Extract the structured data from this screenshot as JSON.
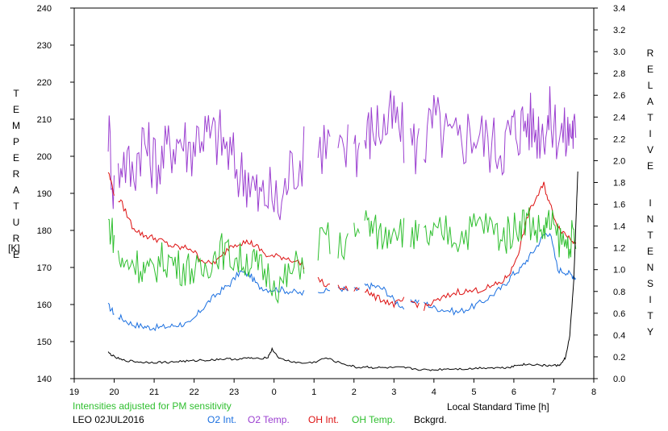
{
  "chart_data": {
    "type": "line",
    "title": "",
    "y_left": {
      "label": "TEMPERATURE",
      "unit": "[K]",
      "range": [
        140,
        240
      ],
      "ticks": [
        "140",
        "150",
        "160",
        "170",
        "180",
        "190",
        "200",
        "210",
        "220",
        "230",
        "240"
      ]
    },
    "y_right": {
      "label": "RELATIVE INTENSITY",
      "range": [
        0.0,
        3.4
      ],
      "ticks": [
        "0.0",
        "0.2",
        "0.4",
        "0.6",
        "0.8",
        "1.0",
        "1.2",
        "1.4",
        "1.6",
        "1.8",
        "2.0",
        "2.2",
        "2.4",
        "2.6",
        "2.8",
        "3.0",
        "3.2",
        "3.4"
      ]
    },
    "x": {
      "label": "Local Standard Time [h]",
      "range": [
        19,
        8
      ],
      "ticks": [
        "19",
        "20",
        "21",
        "22",
        "23",
        "0",
        "1",
        "2",
        "3",
        "4",
        "5",
        "6",
        "7",
        "8"
      ]
    },
    "note": "Intensities adjusted for PM sensitivity",
    "station": "LEO 02JUL2016",
    "series": [
      {
        "name": "O2 Int.",
        "color": "#1a6fe0",
        "axis": "right",
        "points": [
          [
            19.85,
            0.67
          ],
          [
            20.0,
            0.6
          ],
          [
            20.2,
            0.55
          ],
          [
            20.45,
            0.5
          ],
          [
            20.7,
            0.48
          ],
          [
            20.9,
            0.47
          ],
          [
            21.15,
            0.47
          ],
          [
            21.4,
            0.48
          ],
          [
            21.65,
            0.5
          ],
          [
            21.9,
            0.5
          ],
          [
            22.15,
            0.62
          ],
          [
            22.4,
            0.72
          ],
          [
            22.65,
            0.8
          ],
          [
            22.9,
            0.87
          ],
          [
            23.15,
            0.98
          ],
          [
            23.4,
            0.95
          ],
          [
            23.6,
            0.85
          ],
          [
            23.85,
            0.82
          ],
          [
            24.15,
            0.82
          ],
          [
            24.4,
            0.8
          ],
          [
            24.7,
            0.78
          ],
          [
            25.0,
            0.83
          ],
          [
            25.3,
            0.8
          ],
          [
            25.6,
            0.84
          ],
          [
            25.9,
            0.8
          ],
          [
            26.1,
            0.82
          ],
          [
            26.3,
            0.85
          ],
          [
            26.5,
            0.85
          ],
          [
            26.75,
            0.82
          ],
          [
            27.0,
            0.72
          ],
          [
            27.25,
            0.65
          ],
          [
            27.5,
            0.72
          ],
          [
            27.75,
            0.7
          ],
          [
            28.0,
            0.65
          ],
          [
            28.3,
            0.63
          ],
          [
            28.6,
            0.61
          ],
          [
            28.9,
            0.65
          ],
          [
            29.2,
            0.7
          ],
          [
            29.5,
            0.78
          ],
          [
            29.75,
            0.85
          ],
          [
            29.95,
            0.95
          ],
          [
            30.15,
            1.0
          ],
          [
            30.35,
            1.1
          ],
          [
            30.55,
            1.2
          ],
          [
            30.75,
            1.32
          ],
          [
            30.9,
            1.34
          ],
          [
            31.1,
            1.0
          ],
          [
            31.3,
            0.98
          ],
          [
            31.45,
            0.95
          ],
          [
            31.55,
            0.92
          ]
        ],
        "gaps": [
          [
            20.0,
            20.1
          ],
          [
            24.75,
            25.1
          ],
          [
            25.45,
            25.6
          ],
          [
            25.85,
            26.0
          ],
          [
            26.15,
            26.25
          ],
          [
            27.25,
            27.4
          ],
          [
            27.65,
            27.75
          ]
        ]
      },
      {
        "name": "O2 Temp.",
        "color": "#9b3fd0",
        "axis": "left",
        "points": [
          [
            19.85,
            208
          ],
          [
            20.0,
            190
          ],
          [
            20.2,
            200
          ],
          [
            20.45,
            195
          ],
          [
            20.7,
            205
          ],
          [
            20.9,
            200
          ],
          [
            21.15,
            198
          ],
          [
            21.4,
            203
          ],
          [
            21.65,
            205
          ],
          [
            21.9,
            202
          ],
          [
            22.15,
            207
          ],
          [
            22.4,
            205
          ],
          [
            22.65,
            205
          ],
          [
            22.9,
            200
          ],
          [
            23.15,
            195
          ],
          [
            23.4,
            195
          ],
          [
            23.6,
            188
          ],
          [
            23.85,
            190
          ],
          [
            24.15,
            186
          ],
          [
            24.4,
            196
          ],
          [
            24.7,
            200
          ],
          [
            25.0,
            200
          ],
          [
            25.3,
            205
          ],
          [
            25.6,
            198
          ],
          [
            25.9,
            203
          ],
          [
            26.1,
            202
          ],
          [
            26.3,
            205
          ],
          [
            26.5,
            208
          ],
          [
            26.75,
            208
          ],
          [
            27.0,
            210
          ],
          [
            27.25,
            205
          ],
          [
            27.5,
            203
          ],
          [
            27.75,
            203
          ],
          [
            28.0,
            210
          ],
          [
            28.3,
            205
          ],
          [
            28.6,
            203
          ],
          [
            28.9,
            207
          ],
          [
            29.2,
            205
          ],
          [
            29.5,
            203
          ],
          [
            29.75,
            203
          ],
          [
            29.95,
            207
          ],
          [
            30.15,
            208
          ],
          [
            30.35,
            210
          ],
          [
            30.55,
            207
          ],
          [
            30.75,
            208
          ],
          [
            30.9,
            210
          ],
          [
            31.1,
            207
          ],
          [
            31.3,
            205
          ],
          [
            31.45,
            208
          ],
          [
            31.55,
            205
          ]
        ],
        "gaps": [
          [
            20.0,
            20.1
          ],
          [
            24.75,
            25.1
          ],
          [
            25.45,
            25.6
          ],
          [
            25.85,
            26.0
          ],
          [
            26.15,
            26.25
          ],
          [
            27.25,
            27.4
          ],
          [
            27.65,
            27.75
          ]
        ]
      },
      {
        "name": "OH Int.",
        "color": "#dd1010",
        "axis": "right",
        "points": [
          [
            19.85,
            1.9
          ],
          [
            20.0,
            1.7
          ],
          [
            20.2,
            1.6
          ],
          [
            20.45,
            1.4
          ],
          [
            20.7,
            1.32
          ],
          [
            20.9,
            1.3
          ],
          [
            21.15,
            1.27
          ],
          [
            21.4,
            1.22
          ],
          [
            21.65,
            1.2
          ],
          [
            21.9,
            1.2
          ],
          [
            22.15,
            1.1
          ],
          [
            22.4,
            1.05
          ],
          [
            22.65,
            1.1
          ],
          [
            22.9,
            1.22
          ],
          [
            23.15,
            1.25
          ],
          [
            23.4,
            1.25
          ],
          [
            23.6,
            1.2
          ],
          [
            23.85,
            1.12
          ],
          [
            24.15,
            1.12
          ],
          [
            24.4,
            1.1
          ],
          [
            24.7,
            1.05
          ],
          [
            25.0,
            0.95
          ],
          [
            25.3,
            0.85
          ],
          [
            25.6,
            0.83
          ],
          [
            25.9,
            0.82
          ],
          [
            26.1,
            0.82
          ],
          [
            26.3,
            0.82
          ],
          [
            26.5,
            0.75
          ],
          [
            26.75,
            0.72
          ],
          [
            27.0,
            0.68
          ],
          [
            27.25,
            0.72
          ],
          [
            27.5,
            0.7
          ],
          [
            27.75,
            0.65
          ],
          [
            28.0,
            0.7
          ],
          [
            28.3,
            0.75
          ],
          [
            28.6,
            0.8
          ],
          [
            28.9,
            0.8
          ],
          [
            29.2,
            0.82
          ],
          [
            29.5,
            0.85
          ],
          [
            29.75,
            0.9
          ],
          [
            29.95,
            1.0
          ],
          [
            30.15,
            1.2
          ],
          [
            30.35,
            1.5
          ],
          [
            30.55,
            1.65
          ],
          [
            30.75,
            1.78
          ],
          [
            30.9,
            1.6
          ],
          [
            31.1,
            1.4
          ],
          [
            31.3,
            1.32
          ],
          [
            31.45,
            1.28
          ],
          [
            31.55,
            1.25
          ]
        ],
        "gaps": [
          [
            20.0,
            20.1
          ],
          [
            24.75,
            25.1
          ],
          [
            25.45,
            25.6
          ],
          [
            25.85,
            26.0
          ],
          [
            26.15,
            26.25
          ],
          [
            27.25,
            27.4
          ],
          [
            27.65,
            27.75
          ]
        ]
      },
      {
        "name": "OH Temp.",
        "color": "#2fbf2f",
        "axis": "left",
        "points": [
          [
            19.85,
            182
          ],
          [
            20.0,
            178
          ],
          [
            20.2,
            170
          ],
          [
            20.45,
            172
          ],
          [
            20.7,
            170
          ],
          [
            20.9,
            168
          ],
          [
            21.15,
            172
          ],
          [
            21.4,
            172
          ],
          [
            21.65,
            170
          ],
          [
            21.9,
            170
          ],
          [
            22.15,
            168
          ],
          [
            22.4,
            172
          ],
          [
            22.65,
            175
          ],
          [
            22.9,
            173
          ],
          [
            23.15,
            172
          ],
          [
            23.4,
            172
          ],
          [
            23.6,
            170
          ],
          [
            23.85,
            168
          ],
          [
            24.15,
            165
          ],
          [
            24.4,
            168
          ],
          [
            24.7,
            172
          ],
          [
            25.0,
            175
          ],
          [
            25.3,
            178
          ],
          [
            25.6,
            175
          ],
          [
            25.9,
            178
          ],
          [
            26.1,
            180
          ],
          [
            26.3,
            182
          ],
          [
            26.5,
            180
          ],
          [
            26.75,
            178
          ],
          [
            27.0,
            182
          ],
          [
            27.25,
            180
          ],
          [
            27.5,
            178
          ],
          [
            27.75,
            178
          ],
          [
            28.0,
            178
          ],
          [
            28.3,
            180
          ],
          [
            28.6,
            178
          ],
          [
            28.9,
            180
          ],
          [
            29.2,
            182
          ],
          [
            29.5,
            180
          ],
          [
            29.75,
            178
          ],
          [
            29.95,
            180
          ],
          [
            30.15,
            182
          ],
          [
            30.35,
            183
          ],
          [
            30.55,
            180
          ],
          [
            30.75,
            180
          ],
          [
            30.9,
            182
          ],
          [
            31.1,
            178
          ],
          [
            31.3,
            176
          ],
          [
            31.45,
            178
          ],
          [
            31.55,
            175
          ]
        ],
        "gaps": [
          [
            20.0,
            20.1
          ],
          [
            24.75,
            25.1
          ],
          [
            25.45,
            25.6
          ],
          [
            25.85,
            26.0
          ],
          [
            26.15,
            26.25
          ],
          [
            27.25,
            27.4
          ],
          [
            27.65,
            27.75
          ]
        ]
      },
      {
        "name": "Bckgrd.",
        "color": "#000000",
        "axis": "right",
        "points": [
          [
            19.85,
            0.24
          ],
          [
            20.0,
            0.2
          ],
          [
            20.2,
            0.17
          ],
          [
            20.45,
            0.16
          ],
          [
            20.7,
            0.15
          ],
          [
            20.9,
            0.15
          ],
          [
            21.15,
            0.15
          ],
          [
            21.4,
            0.15
          ],
          [
            21.65,
            0.16
          ],
          [
            21.9,
            0.16
          ],
          [
            22.15,
            0.17
          ],
          [
            22.4,
            0.17
          ],
          [
            22.65,
            0.18
          ],
          [
            22.9,
            0.18
          ],
          [
            23.15,
            0.18
          ],
          [
            23.4,
            0.19
          ],
          [
            23.6,
            0.18
          ],
          [
            23.85,
            0.2
          ],
          [
            23.95,
            0.27
          ],
          [
            24.15,
            0.18
          ],
          [
            24.4,
            0.16
          ],
          [
            24.7,
            0.14
          ],
          [
            25.0,
            0.15
          ],
          [
            25.3,
            0.19
          ],
          [
            25.6,
            0.15
          ],
          [
            25.9,
            0.12
          ],
          [
            26.1,
            0.1
          ],
          [
            26.3,
            0.11
          ],
          [
            26.5,
            0.1
          ],
          [
            26.75,
            0.1
          ],
          [
            27.0,
            0.1
          ],
          [
            27.25,
            0.1
          ],
          [
            27.5,
            0.09
          ],
          [
            27.75,
            0.08
          ],
          [
            28.0,
            0.08
          ],
          [
            28.3,
            0.09
          ],
          [
            28.6,
            0.09
          ],
          [
            28.9,
            0.09
          ],
          [
            29.2,
            0.1
          ],
          [
            29.5,
            0.1
          ],
          [
            29.75,
            0.1
          ],
          [
            29.95,
            0.11
          ],
          [
            30.15,
            0.13
          ],
          [
            30.35,
            0.13
          ],
          [
            30.55,
            0.13
          ],
          [
            30.75,
            0.12
          ],
          [
            30.9,
            0.12
          ],
          [
            31.1,
            0.12
          ],
          [
            31.2,
            0.14
          ],
          [
            31.3,
            0.2
          ],
          [
            31.4,
            0.4
          ],
          [
            31.5,
            0.9
          ],
          [
            31.55,
            1.4
          ],
          [
            31.6,
            1.9
          ]
        ],
        "gaps": []
      }
    ]
  }
}
